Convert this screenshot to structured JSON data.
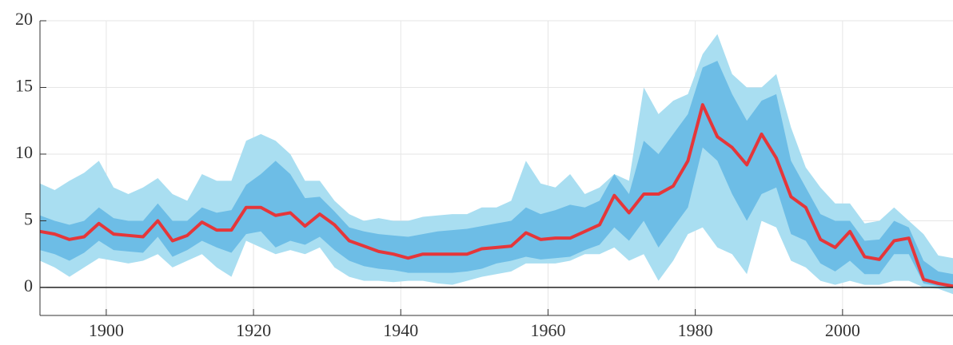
{
  "chart_data": {
    "type": "fan",
    "x": [
      1891,
      1893,
      1895,
      1897,
      1899,
      1901,
      1903,
      1905,
      1907,
      1909,
      1911,
      1913,
      1915,
      1917,
      1919,
      1921,
      1923,
      1925,
      1927,
      1929,
      1931,
      1933,
      1935,
      1937,
      1939,
      1941,
      1943,
      1945,
      1947,
      1949,
      1951,
      1953,
      1955,
      1957,
      1959,
      1961,
      1963,
      1965,
      1967,
      1969,
      1971,
      1973,
      1975,
      1977,
      1979,
      1981,
      1983,
      1985,
      1987,
      1989,
      1991,
      1993,
      1995,
      1997,
      1999,
      2001,
      2003,
      2005,
      2007,
      2009,
      2011,
      2013,
      2015
    ],
    "bands": [
      {
        "color": "#a9def1",
        "low": [
          2.0,
          1.5,
          0.8,
          1.5,
          2.2,
          2.0,
          1.8,
          2.0,
          2.5,
          1.5,
          2.0,
          2.5,
          1.5,
          0.8,
          3.5,
          3.0,
          2.5,
          2.8,
          2.5,
          3.0,
          1.5,
          0.8,
          0.5,
          0.5,
          0.4,
          0.5,
          0.5,
          0.3,
          0.2,
          0.5,
          0.8,
          1.0,
          1.2,
          1.8,
          1.8,
          1.8,
          2.0,
          2.5,
          2.5,
          3.0,
          2.0,
          2.5,
          0.5,
          2.0,
          4.0,
          4.5,
          3.0,
          2.5,
          1.0,
          5.0,
          4.5,
          2.0,
          1.5,
          0.5,
          0.2,
          0.5,
          0.2,
          0.2,
          0.5,
          0.5,
          0.0,
          -0.1,
          -0.5
        ],
        "high": [
          7.8,
          7.3,
          8.0,
          8.6,
          9.5,
          7.5,
          7.0,
          7.5,
          8.2,
          7.0,
          6.5,
          8.5,
          8.0,
          8.0,
          11.0,
          11.5,
          11.0,
          10.0,
          8.0,
          8.0,
          6.5,
          5.5,
          5.0,
          5.2,
          5.0,
          5.0,
          5.3,
          5.4,
          5.5,
          5.5,
          6.0,
          6.0,
          6.5,
          9.5,
          7.8,
          7.5,
          8.5,
          7.0,
          7.5,
          8.5,
          8.0,
          15.0,
          13.0,
          14.0,
          14.5,
          17.5,
          19.0,
          16.0,
          15.0,
          15.0,
          16.0,
          12.0,
          9.0,
          7.5,
          6.3,
          6.3,
          4.8,
          5.0,
          6.0,
          5.0,
          4.0,
          2.4,
          2.2
        ]
      },
      {
        "color": "#6dbde6",
        "low": [
          2.8,
          2.5,
          2.0,
          2.6,
          3.5,
          2.8,
          2.7,
          2.6,
          3.8,
          2.3,
          2.8,
          3.5,
          3.0,
          2.6,
          4.0,
          4.2,
          3.0,
          3.5,
          3.2,
          3.8,
          2.8,
          2.0,
          1.6,
          1.4,
          1.3,
          1.1,
          1.1,
          1.1,
          1.1,
          1.2,
          1.4,
          1.8,
          2.0,
          2.3,
          2.1,
          2.2,
          2.3,
          2.8,
          3.2,
          4.5,
          3.5,
          5.0,
          3.0,
          4.5,
          6.0,
          10.5,
          9.5,
          7.0,
          5.0,
          7.0,
          7.5,
          4.0,
          3.5,
          1.8,
          1.2,
          2.0,
          1.0,
          1.0,
          2.5,
          2.5,
          0.3,
          0.1,
          0.0
        ],
        "high": [
          5.4,
          5.0,
          4.7,
          5.0,
          6.0,
          5.2,
          5.0,
          5.0,
          6.3,
          5.0,
          5.0,
          6.0,
          5.6,
          5.8,
          7.7,
          8.5,
          9.5,
          8.5,
          6.7,
          6.8,
          5.7,
          4.5,
          4.2,
          4.0,
          3.9,
          3.8,
          4.0,
          4.2,
          4.3,
          4.4,
          4.6,
          4.8,
          5.0,
          6.0,
          5.5,
          5.8,
          6.2,
          6.0,
          6.5,
          8.5,
          7.0,
          11.0,
          10.0,
          11.5,
          13.0,
          16.5,
          17.0,
          14.5,
          12.5,
          14.0,
          14.5,
          9.5,
          7.5,
          5.5,
          5.0,
          5.0,
          3.5,
          3.6,
          5.0,
          4.5,
          2.0,
          1.2,
          1.0
        ]
      }
    ],
    "series": [
      {
        "color": "#e5363a",
        "values": [
          4.2,
          4.0,
          3.6,
          3.8,
          4.8,
          4.0,
          3.9,
          3.8,
          5.0,
          3.5,
          3.9,
          4.9,
          4.3,
          4.3,
          6.0,
          6.0,
          5.4,
          5.6,
          4.6,
          5.5,
          4.7,
          3.5,
          3.1,
          2.7,
          2.5,
          2.2,
          2.5,
          2.5,
          2.5,
          2.5,
          2.9,
          3.0,
          3.1,
          4.1,
          3.6,
          3.7,
          3.7,
          4.2,
          4.7,
          6.9,
          5.6,
          7.0,
          7.0,
          7.6,
          9.5,
          13.7,
          11.3,
          10.5,
          9.2,
          11.5,
          9.7,
          6.8,
          6.0,
          3.6,
          3.0,
          4.2,
          2.3,
          2.1,
          3.5,
          3.7,
          0.6,
          0.3,
          0.1
        ]
      }
    ],
    "xlim": [
      1891,
      2015
    ],
    "xticks": [
      1900,
      1920,
      1940,
      1960,
      1980,
      2000
    ],
    "ylim": [
      -2.1,
      20
    ],
    "yticks": [
      0,
      5,
      10,
      15,
      20
    ],
    "grid": true
  }
}
